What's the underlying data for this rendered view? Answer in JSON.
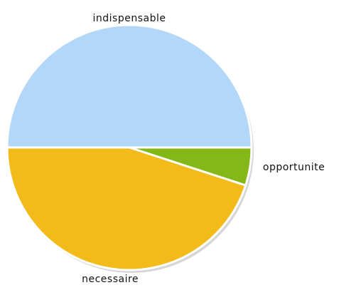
{
  "chart_data": {
    "type": "pie",
    "title": "",
    "slices": [
      {
        "label": "indispensable",
        "value": 50,
        "color": "#b3d7f8"
      },
      {
        "label": "opportunite",
        "value": 5,
        "color": "#84b816"
      },
      {
        "label": "necessaire",
        "value": 45,
        "color": "#f2bb1a"
      }
    ],
    "start_angle_deg": 180,
    "direction": "clockwise",
    "legend": "none",
    "slice_border_color": "#ffffff",
    "shadow_color": "#d6d6d6"
  }
}
